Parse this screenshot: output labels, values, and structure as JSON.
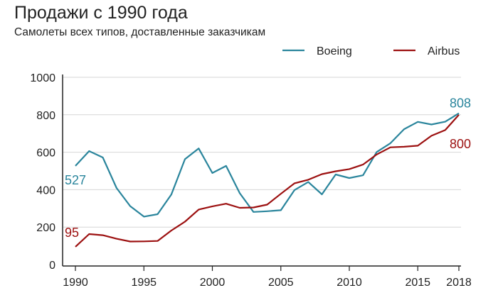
{
  "chart_data": {
    "type": "line",
    "title": "Продажи с 1990 года",
    "subtitle": "Самолеты всех типов, доставленные заказчикам",
    "xlabel": "",
    "ylabel": "",
    "ylim": [
      0,
      1000
    ],
    "xlim": [
      1990,
      2018
    ],
    "yticks": [
      0,
      200,
      400,
      600,
      800,
      1000
    ],
    "xticks": [
      1990,
      1995,
      2000,
      2005,
      2010,
      2015,
      2018
    ],
    "grid": true,
    "legend": "top-right",
    "x": [
      1990,
      1991,
      1992,
      1993,
      1994,
      1995,
      1996,
      1997,
      1998,
      1999,
      2000,
      2001,
      2002,
      2003,
      2004,
      2005,
      2006,
      2007,
      2008,
      2009,
      2010,
      2011,
      2012,
      2013,
      2014,
      2015,
      2016,
      2017,
      2018
    ],
    "series": [
      {
        "name": "Boeing",
        "color": "#2a859c",
        "values": [
          527,
          606,
          572,
          409,
          312,
          256,
          269,
          374,
          563,
          620,
          489,
          527,
          381,
          281,
          285,
          290,
          398,
          441,
          375,
          481,
          462,
          477,
          601,
          648,
          723,
          762,
          748,
          763,
          808
        ],
        "start_label": "527",
        "end_label": "808"
      },
      {
        "name": "Airbus",
        "color": "#9c1010",
        "values": [
          95,
          163,
          157,
          138,
          123,
          124,
          126,
          182,
          229,
          294,
          311,
          325,
          303,
          305,
          320,
          378,
          434,
          453,
          483,
          498,
          510,
          534,
          588,
          626,
          629,
          635,
          688,
          718,
          800
        ],
        "start_label": "95",
        "end_label": "800"
      }
    ]
  }
}
